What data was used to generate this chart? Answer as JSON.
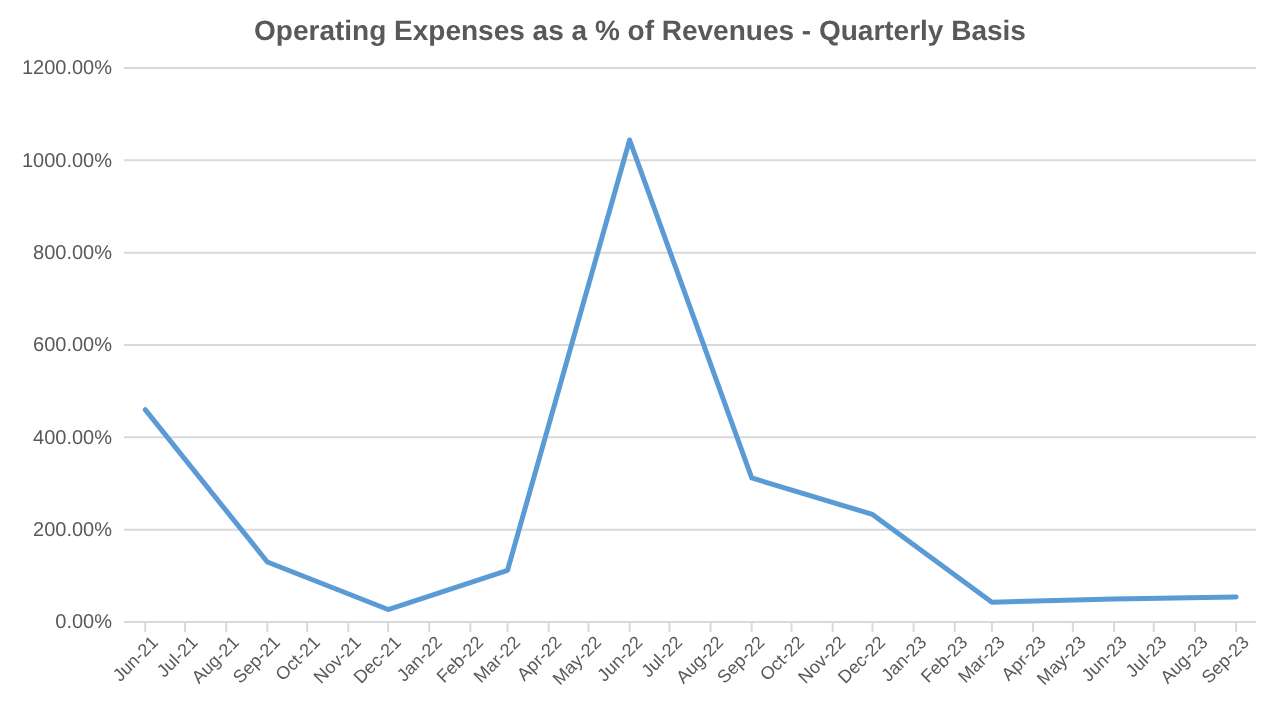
{
  "chart_data": {
    "type": "line",
    "title": "Operating Expenses as a % of Revenues - Quarterly Basis",
    "x": [
      "2021-06",
      "2021-09",
      "2021-12",
      "2022-03",
      "2022-06",
      "2022-09",
      "2022-12",
      "2023-03",
      "2023-06",
      "2023-09"
    ],
    "series": [
      {
        "color": "#5b9bd5",
        "values": [
          460,
          130,
          27,
          112,
          1044,
          312,
          233,
          43,
          50,
          54
        ]
      }
    ],
    "xlim": [
      "2021-05-16",
      "2023-09-16"
    ],
    "xticks": [
      {
        "value": "2021-06",
        "label": "Jun-21"
      },
      {
        "value": "2021-07",
        "label": "Jul-21"
      },
      {
        "value": "2021-08",
        "label": "Aug-21"
      },
      {
        "value": "2021-09",
        "label": "Sep-21"
      },
      {
        "value": "2021-10",
        "label": "Oct-21"
      },
      {
        "value": "2021-11",
        "label": "Nov-21"
      },
      {
        "value": "2021-12",
        "label": "Dec-21"
      },
      {
        "value": "2022-01",
        "label": "Jan-22"
      },
      {
        "value": "2022-02",
        "label": "Feb-22"
      },
      {
        "value": "2022-03",
        "label": "Mar-22"
      },
      {
        "value": "2022-04",
        "label": "Apr-22"
      },
      {
        "value": "2022-05",
        "label": "May-22"
      },
      {
        "value": "2022-06",
        "label": "Jun-22"
      },
      {
        "value": "2022-07",
        "label": "Jul-22"
      },
      {
        "value": "2022-08",
        "label": "Aug-22"
      },
      {
        "value": "2022-09",
        "label": "Sep-22"
      },
      {
        "value": "2022-10",
        "label": "Oct-22"
      },
      {
        "value": "2022-11",
        "label": "Nov-22"
      },
      {
        "value": "2022-12",
        "label": "Dec-22"
      },
      {
        "value": "2023-01",
        "label": "Jan-23"
      },
      {
        "value": "2023-02",
        "label": "Feb-23"
      },
      {
        "value": "2023-03",
        "label": "Mar-23"
      },
      {
        "value": "2023-04",
        "label": "Apr-23"
      },
      {
        "value": "2023-05",
        "label": "May-23"
      },
      {
        "value": "2023-06",
        "label": "Jun-23"
      },
      {
        "value": "2023-07",
        "label": "Jul-23"
      },
      {
        "value": "2023-08",
        "label": "Aug-23"
      },
      {
        "value": "2023-09",
        "label": "Sep-23"
      }
    ],
    "ylim": [
      0,
      1200
    ],
    "yticks": [
      {
        "value": 0,
        "label": "0.00%"
      },
      {
        "value": 200,
        "label": "200.00%"
      },
      {
        "value": 400,
        "label": "400.00%"
      },
      {
        "value": 600,
        "label": "600.00%"
      },
      {
        "value": 800,
        "label": "800.00%"
      },
      {
        "value": 1000,
        "label": "1000.00%"
      },
      {
        "value": 1200,
        "label": "1200.00%"
      }
    ],
    "grid": "y",
    "marker": "none",
    "line_style": "solid"
  }
}
